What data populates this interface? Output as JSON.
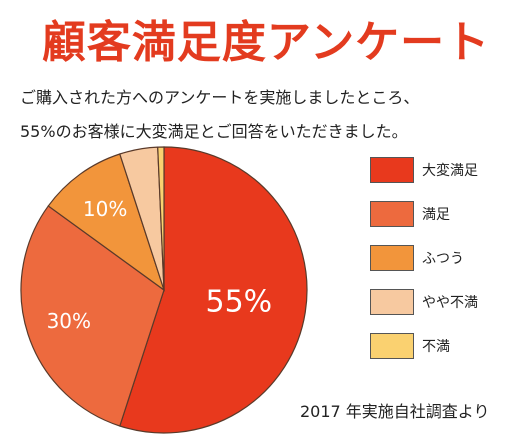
{
  "title": "顧客満足度アンケート",
  "lead": {
    "line1": "ご購入された方へのアンケートを実施しましたところ、",
    "line2": "55%のお客様に大変満足とご回答をいただきました。"
  },
  "source": "2017 年実施自社調査より",
  "colors": {
    "title": "#e33b1f",
    "very_satisfied": "#e8391d",
    "satisfied": "#ed6a3e",
    "neutral": "#f2953b",
    "somewhat_dissatisfied": "#f7c9a0",
    "dissatisfied": "#fad170"
  },
  "chart_data": {
    "type": "pie",
    "title": "",
    "slices": [
      {
        "name": "大変満足",
        "value": 55,
        "label": "55%",
        "color": "#e8391d"
      },
      {
        "name": "満足",
        "value": 30,
        "label": "30%",
        "color": "#ed6a3e"
      },
      {
        "name": "ふつう",
        "value": 10,
        "label": "10%",
        "color": "#f2953b"
      },
      {
        "name": "やや不満",
        "value": 4.3,
        "label": "",
        "color": "#f7c9a0"
      },
      {
        "name": "不満",
        "value": 0.7,
        "label": "",
        "color": "#fad170"
      }
    ],
    "legend_position": "right",
    "start": "top",
    "direction": "clockwise"
  }
}
